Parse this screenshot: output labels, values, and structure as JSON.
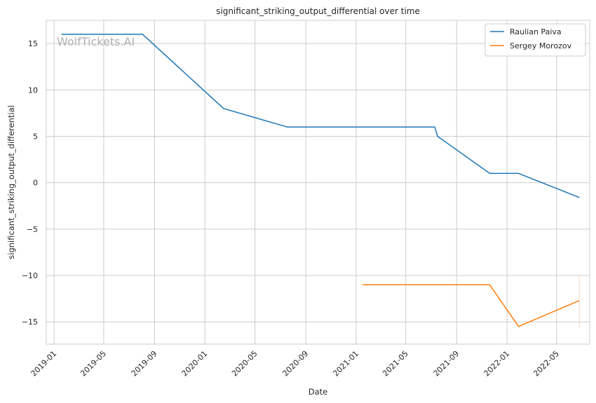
{
  "chart_data": {
    "type": "line",
    "title": "significant_striking_output_differential over time",
    "xlabel": "Date",
    "ylabel": "significant_striking_output_differential",
    "watermark": "WolfTickets.AI",
    "x_ticks": [
      "2019-01",
      "2019-05",
      "2019-09",
      "2020-01",
      "2020-05",
      "2020-09",
      "2021-01",
      "2021-05",
      "2021-09",
      "2022-01",
      "2022-05"
    ],
    "y_ticks": [
      15,
      10,
      5,
      0,
      -5,
      -10,
      -15
    ],
    "ylim": [
      -17.4,
      17.5
    ],
    "xlim": [
      "2018-12-13",
      "2022-07-20"
    ],
    "grid": true,
    "legend_position": "top-right",
    "series": [
      {
        "name": "Raulian Paiva",
        "color": "#1f77b4",
        "points": [
          {
            "x": "2019-01-19",
            "y": 16
          },
          {
            "x": "2019-08-03",
            "y": 16
          },
          {
            "x": "2020-02-15",
            "y": 8
          },
          {
            "x": "2020-07-18",
            "y": 6
          },
          {
            "x": "2021-07-10",
            "y": 6
          },
          {
            "x": "2021-07-17",
            "y": 5
          },
          {
            "x": "2021-11-20",
            "y": 1
          },
          {
            "x": "2022-01-29",
            "y": 1
          },
          {
            "x": "2022-06-25",
            "y": -1.6
          }
        ]
      },
      {
        "name": "Sergey Morozov",
        "color": "#ff7f0e",
        "points": [
          {
            "x": "2021-01-16",
            "y": -11
          },
          {
            "x": "2021-11-20",
            "y": -11
          },
          {
            "x": "2022-01-29",
            "y": -15.5
          },
          {
            "x": "2022-06-25",
            "y": -12.7
          }
        ]
      }
    ]
  }
}
